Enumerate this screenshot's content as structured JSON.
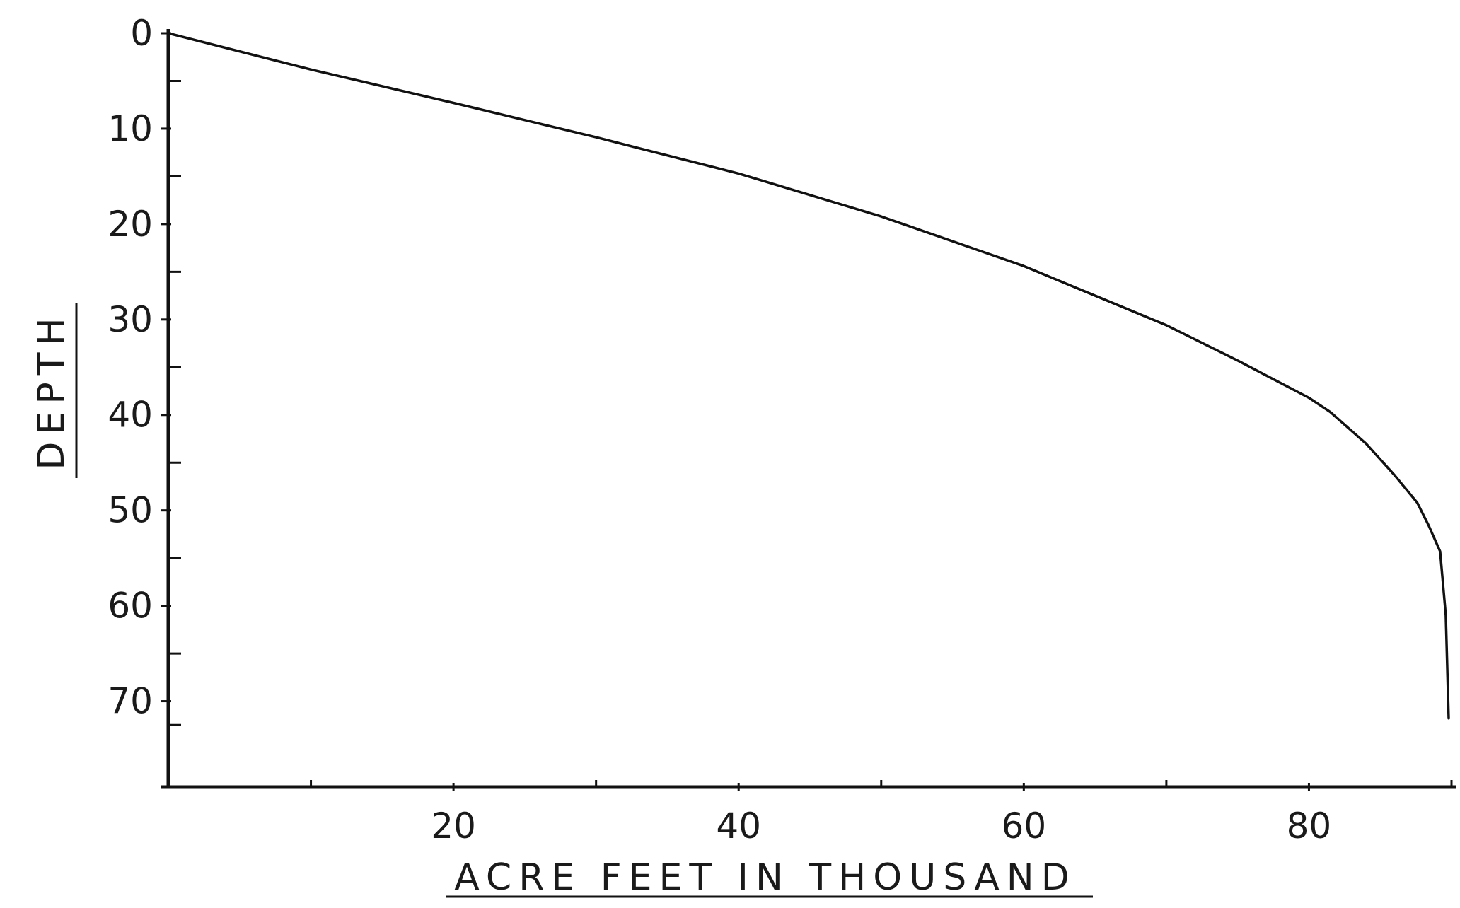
{
  "chart_data": {
    "type": "line",
    "xlabel": "ACRE FEET IN THOUSAND",
    "ylabel": "DEPTH",
    "xlim": [
      0,
      90
    ],
    "ylim": [
      0,
      79
    ],
    "y_inverted": true,
    "x_major_ticks": [
      20,
      40,
      60,
      80
    ],
    "x_minor_ticks": [
      10,
      30,
      50,
      70,
      90
    ],
    "x_tick_labels": [
      "20",
      "40",
      "60",
      "80"
    ],
    "y_major_ticks": [
      0,
      10,
      20,
      30,
      40,
      50,
      60,
      70
    ],
    "y_minor_ticks": [
      5,
      15,
      25,
      35,
      45,
      55,
      65,
      72.5
    ],
    "y_tick_labels": [
      "0",
      "10",
      "20",
      "30",
      "40",
      "50",
      "60",
      "70"
    ],
    "grid": false,
    "series": [
      {
        "x": [
          0,
          10,
          20,
          30,
          40,
          50,
          60,
          70,
          75,
          80,
          81.5,
          84,
          86,
          87.6,
          88.4,
          89.2,
          89.6,
          89.8
        ],
        "y": [
          0,
          3.8,
          7.3,
          10.9,
          14.7,
          19.2,
          24.4,
          30.6,
          34.3,
          38.2,
          39.7,
          43,
          46.3,
          49.2,
          51.6,
          54.3,
          61,
          71.8
        ]
      }
    ]
  }
}
